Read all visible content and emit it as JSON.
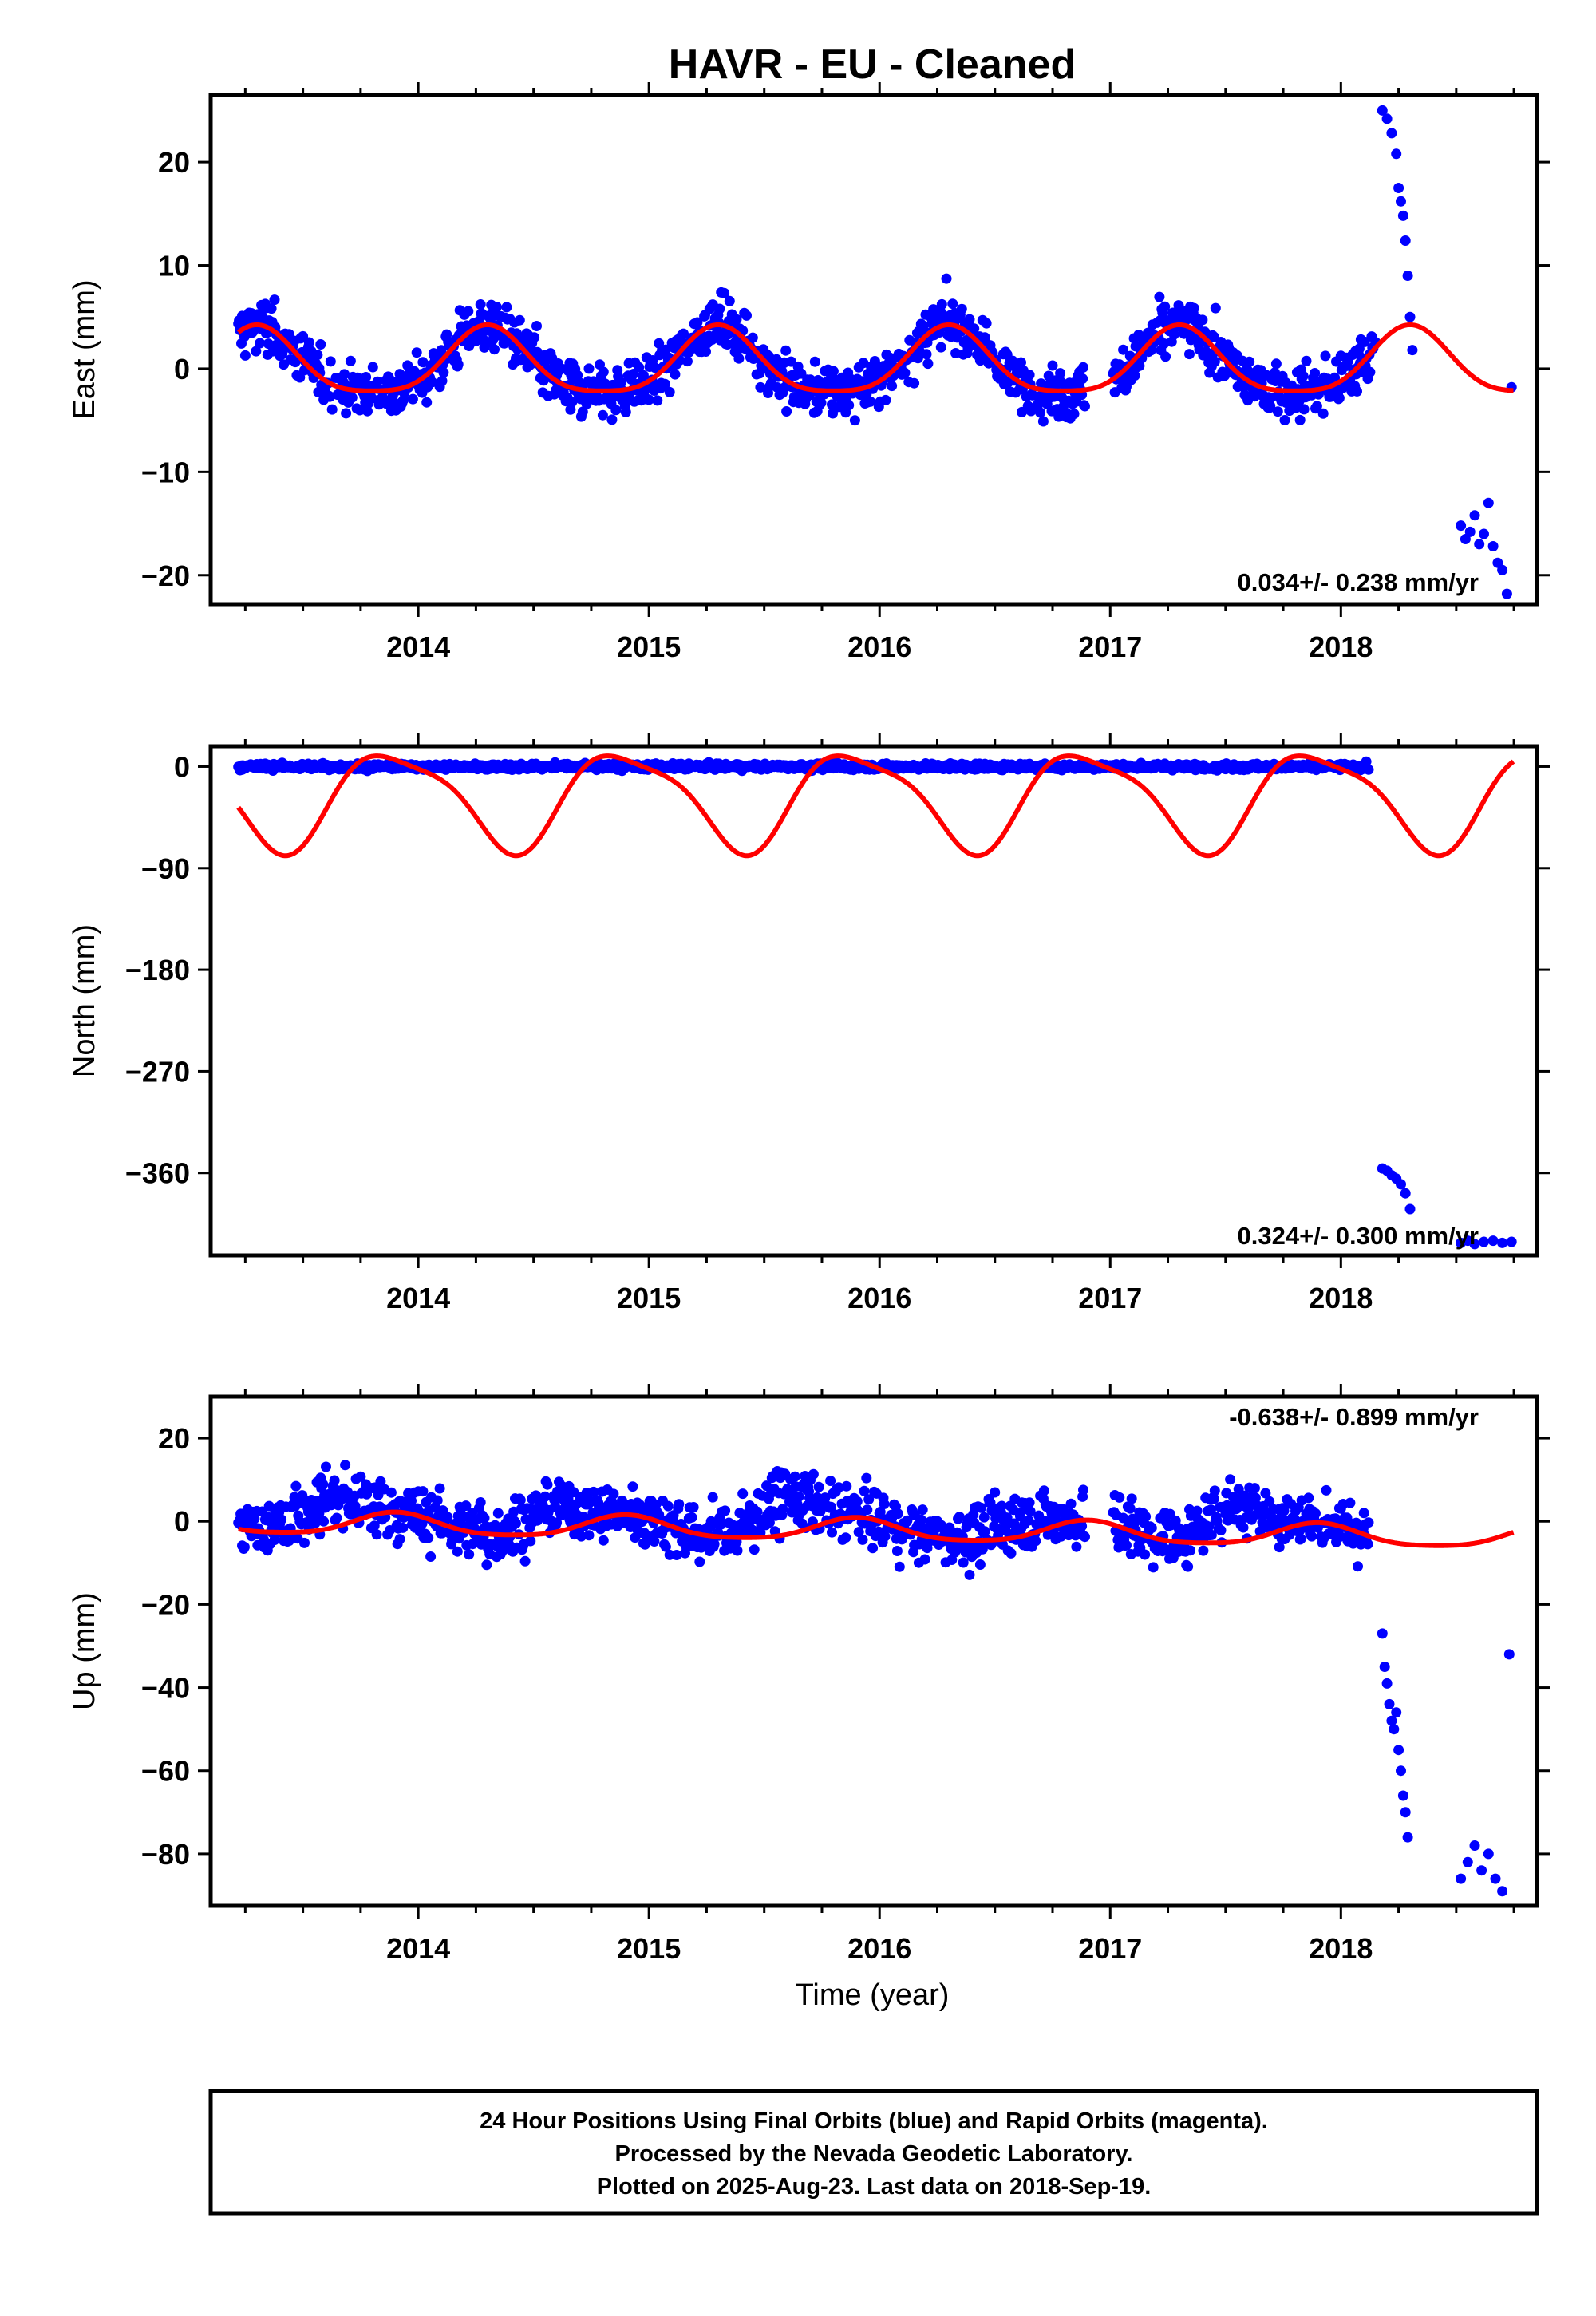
{
  "title": "HAVR  - EU - Cleaned",
  "xlabel": "Time (year)",
  "footer": {
    "line1": "24 Hour Positions Using Final Orbits (blue) and Rapid Orbits (magenta).",
    "line2": "Processed by the Nevada Geodetic Laboratory.",
    "line3": "Plotted on 2025-Aug-23. Last data on 2018-Sep-19."
  },
  "colors": {
    "data": "#0000ff",
    "model": "#ff0000",
    "frame": "#000000"
  },
  "chart_data": [
    {
      "type": "scatter",
      "component": "east",
      "ylabel": "East (mm)",
      "rate": "0.034+/- 0.238 mm/yr",
      "xlim": [
        2013.1,
        2018.85
      ],
      "ylim": [
        -22.8,
        26.5
      ],
      "xticks": [
        2014,
        2015,
        2016,
        2017,
        2018
      ],
      "yticks": [
        -20,
        -10,
        0,
        10,
        20
      ],
      "model": {
        "mean": 0.35,
        "slope": 0.0,
        "annual_amp": 3.2,
        "annual_peak": 2014.3,
        "semi_amp": 0.7,
        "semi_peak": 2014.3
      },
      "data_blocks": [
        {
          "start": 2013.22,
          "end": 2018.15,
          "spread": 1.8,
          "follow_model": true
        },
        {
          "start": 2018.17,
          "end": 2018.3,
          "points": [
            [
              2018.18,
              25.0
            ],
            [
              2018.2,
              24.2
            ],
            [
              2018.22,
              22.8
            ],
            [
              2018.24,
              20.8
            ],
            [
              2018.25,
              17.5
            ],
            [
              2018.26,
              16.2
            ],
            [
              2018.27,
              14.8
            ],
            [
              2018.28,
              12.4
            ],
            [
              2018.29,
              9.0
            ],
            [
              2018.3,
              5.0
            ],
            [
              2018.31,
              1.8
            ]
          ]
        },
        {
          "start": 2018.5,
          "end": 2018.75,
          "points": [
            [
              2018.52,
              -15.2
            ],
            [
              2018.54,
              -16.5
            ],
            [
              2018.56,
              -15.8
            ],
            [
              2018.58,
              -14.2
            ],
            [
              2018.6,
              -17.0
            ],
            [
              2018.62,
              -16.0
            ],
            [
              2018.64,
              -13.0
            ],
            [
              2018.66,
              -17.2
            ],
            [
              2018.68,
              -18.8
            ],
            [
              2018.7,
              -19.5
            ],
            [
              2018.72,
              -21.8
            ],
            [
              2018.74,
              -1.8
            ]
          ]
        }
      ]
    },
    {
      "type": "scatter",
      "component": "north",
      "ylabel": "North (mm)",
      "rate": "0.324+/- 0.300 mm/yr",
      "xlim": [
        2013.1,
        2018.85
      ],
      "ylim": [
        -433,
        18
      ],
      "xticks": [
        2014,
        2015,
        2016,
        2017,
        2018
      ],
      "yticks": [
        -360,
        -270,
        -180,
        -90,
        0
      ],
      "model": {
        "mean": -28,
        "slope": 0.0,
        "annual_amp": 42,
        "annual_peak": 2014.9,
        "semi_amp": 10,
        "semi_peak": 2014.2
      },
      "data_blocks": [
        {
          "start": 2013.22,
          "end": 2018.12,
          "spread": 2.0,
          "level": 0.0,
          "follow_model": false
        },
        {
          "start": 2018.17,
          "end": 2018.3,
          "points": [
            [
              2018.18,
              -356
            ],
            [
              2018.2,
              -358
            ],
            [
              2018.22,
              -362
            ],
            [
              2018.24,
              -365
            ],
            [
              2018.26,
              -370
            ],
            [
              2018.28,
              -378
            ],
            [
              2018.3,
              -392
            ]
          ]
        },
        {
          "start": 2018.5,
          "end": 2018.75,
          "points": [
            [
              2018.52,
              -422
            ],
            [
              2018.55,
              -420
            ],
            [
              2018.58,
              -423
            ],
            [
              2018.62,
              -421
            ],
            [
              2018.66,
              -420
            ],
            [
              2018.7,
              -422
            ],
            [
              2018.74,
              -421
            ]
          ]
        }
      ]
    },
    {
      "type": "scatter",
      "component": "up",
      "ylabel": "Up (mm)",
      "rate": "-0.638+/- 0.899 mm/yr",
      "xlim": [
        2013.1,
        2018.85
      ],
      "ylim": [
        -92.5,
        30
      ],
      "xticks": [
        2014,
        2015,
        2016,
        2017,
        2018
      ],
      "yticks": [
        -80,
        -60,
        -40,
        -20,
        0,
        20
      ],
      "model": {
        "mean": -2.2,
        "slope": -0.64,
        "annual_amp": 2.6,
        "annual_peak": 2013.9,
        "semi_amp": 0.5,
        "semi_peak": 2013.9
      },
      "data_blocks": [
        {
          "start": 2013.22,
          "end": 2018.12,
          "spread": 5.0,
          "follow_model": true,
          "bias": [
            [
              2013.6,
              7
            ],
            [
              2014.6,
              6
            ],
            [
              2015.6,
              9
            ],
            [
              2016.6,
              4
            ],
            [
              2017.55,
              9
            ]
          ]
        },
        {
          "start": 2018.17,
          "end": 2018.3,
          "points": [
            [
              2018.18,
              -27
            ],
            [
              2018.19,
              -35
            ],
            [
              2018.2,
              -39
            ],
            [
              2018.21,
              -44
            ],
            [
              2018.22,
              -48
            ],
            [
              2018.23,
              -50
            ],
            [
              2018.24,
              -46
            ],
            [
              2018.25,
              -55
            ],
            [
              2018.26,
              -60
            ],
            [
              2018.27,
              -66
            ],
            [
              2018.28,
              -70
            ],
            [
              2018.29,
              -76
            ]
          ]
        },
        {
          "start": 2018.5,
          "end": 2018.75,
          "points": [
            [
              2018.52,
              -86
            ],
            [
              2018.55,
              -82
            ],
            [
              2018.58,
              -78
            ],
            [
              2018.61,
              -84
            ],
            [
              2018.64,
              -80
            ],
            [
              2018.67,
              -86
            ],
            [
              2018.7,
              -89
            ],
            [
              2018.73,
              -32
            ]
          ]
        }
      ]
    }
  ]
}
